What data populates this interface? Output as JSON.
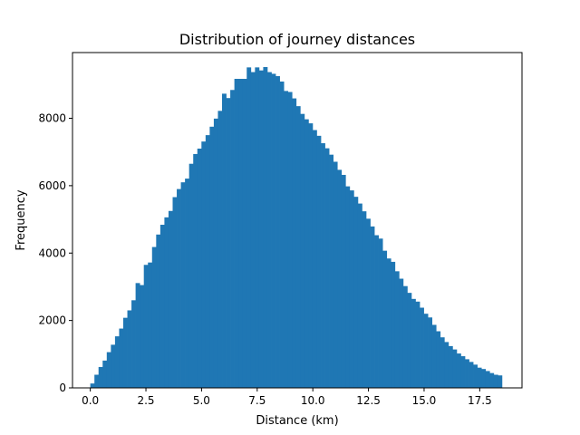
{
  "chart_data": {
    "type": "bar",
    "title": "Distribution of journey distances",
    "xlabel": "Distance (km)",
    "ylabel": "Frequency",
    "xlim": [
      -0.8,
      19.4
    ],
    "ylim": [
      0,
      9950
    ],
    "xticks": [
      0.0,
      2.5,
      5.0,
      7.5,
      10.0,
      12.5,
      15.0,
      17.5
    ],
    "xtick_labels": [
      "0.0",
      "2.5",
      "5.0",
      "7.5",
      "10.0",
      "12.5",
      "15.0",
      "17.5"
    ],
    "yticks": [
      0,
      2000,
      4000,
      6000,
      8000
    ],
    "ytick_labels": [
      "0",
      "2000",
      "4000",
      "6000",
      "8000"
    ],
    "grid": false,
    "legend": "none",
    "bar_color": "#1f77b4",
    "bin_start": 0.0,
    "bin_width": 0.185,
    "values": [
      130,
      390,
      620,
      810,
      1060,
      1280,
      1530,
      1760,
      2080,
      2300,
      2600,
      3110,
      3050,
      3650,
      3720,
      4180,
      4550,
      4840,
      5060,
      5250,
      5660,
      5900,
      6100,
      6210,
      6650,
      6940,
      7100,
      7310,
      7500,
      7750,
      7990,
      8220,
      8730,
      8600,
      8840,
      9170,
      9170,
      9170,
      9510,
      9370,
      9510,
      9420,
      9520,
      9370,
      9320,
      9250,
      9090,
      8810,
      8780,
      8590,
      8360,
      8130,
      7970,
      7850,
      7650,
      7480,
      7260,
      7110,
      6920,
      6710,
      6470,
      6320,
      5980,
      5860,
      5670,
      5470,
      5240,
      5020,
      4790,
      4530,
      4430,
      4070,
      3840,
      3740,
      3460,
      3240,
      3020,
      2820,
      2640,
      2560,
      2380,
      2200,
      2090,
      1870,
      1680,
      1500,
      1360,
      1240,
      1140,
      1020,
      940,
      850,
      770,
      690,
      600,
      560,
      500,
      440,
      390,
      370
    ]
  }
}
